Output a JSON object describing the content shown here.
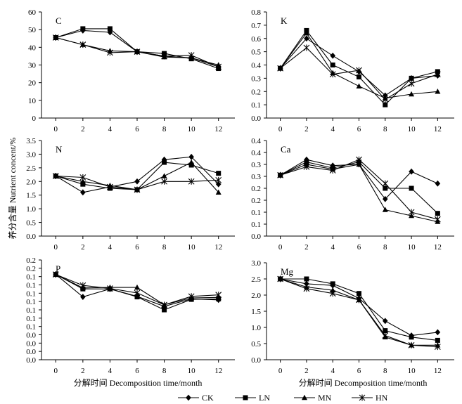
{
  "figure": {
    "y_axis_title": "养分含量 Nutrient concent/%",
    "x_axis_title_left": "分解时间 Decomposition time/month",
    "x_axis_title_right": "分解时间 Decomposition time/month",
    "legend": [
      "CK",
      "LN",
      "MN",
      "HN"
    ]
  },
  "chart_data": [
    {
      "type": "line",
      "label": "C",
      "x": [
        0,
        2,
        4,
        6,
        8,
        10,
        12
      ],
      "xticks": [
        "0",
        "2",
        "4",
        "6",
        "8",
        "10",
        "12"
      ],
      "ylim": [
        0,
        60
      ],
      "yticks": [
        "0",
        "10",
        "20",
        "30",
        "40",
        "50",
        "60"
      ],
      "series": [
        {
          "name": "CK",
          "values": [
            45.5,
            49.5,
            48.5,
            37.5,
            35,
            34,
            29
          ]
        },
        {
          "name": "LN",
          "values": [
            45.5,
            50.5,
            50.5,
            37.5,
            36.5,
            33.5,
            28
          ]
        },
        {
          "name": "MN",
          "values": [
            45.5,
            41.5,
            38,
            37.5,
            34.5,
            34,
            30
          ]
        },
        {
          "name": "HN",
          "values": [
            45.5,
            41.5,
            37,
            37.5,
            35,
            35.5,
            29
          ]
        }
      ]
    },
    {
      "type": "line",
      "label": "K",
      "x": [
        0,
        2,
        4,
        6,
        8,
        10,
        12
      ],
      "xticks": [
        "0",
        "2",
        "4",
        "6",
        "8",
        "10",
        "12"
      ],
      "ylim": [
        0,
        0.8
      ],
      "yticks": [
        "0.0",
        "0.1",
        "0.2",
        "0.3",
        "0.4",
        "0.5",
        "0.6",
        "0.7",
        "0.8"
      ],
      "series": [
        {
          "name": "CK",
          "values": [
            0.375,
            0.6,
            0.47,
            0.35,
            0.17,
            0.3,
            0.32
          ]
        },
        {
          "name": "LN",
          "values": [
            0.375,
            0.66,
            0.4,
            0.31,
            0.1,
            0.3,
            0.35
          ]
        },
        {
          "name": "MN",
          "values": [
            0.375,
            0.64,
            0.34,
            0.24,
            0.15,
            0.18,
            0.2
          ]
        },
        {
          "name": "HN",
          "values": [
            0.375,
            0.53,
            0.33,
            0.36,
            0.14,
            0.26,
            0.33
          ]
        }
      ]
    },
    {
      "type": "line",
      "label": "N",
      "x": [
        0,
        2,
        4,
        6,
        8,
        10,
        12
      ],
      "xticks": [
        "0",
        "2",
        "4",
        "6",
        "8",
        "10",
        "12"
      ],
      "ylim": [
        0,
        3.5
      ],
      "yticks": [
        "0.0",
        "0.5",
        "1.0",
        "1.5",
        "2.0",
        "2.5",
        "3.0",
        "3.5"
      ],
      "series": [
        {
          "name": "CK",
          "values": [
            2.2,
            1.6,
            1.8,
            2.0,
            2.8,
            2.9,
            1.9
          ]
        },
        {
          "name": "LN",
          "values": [
            2.2,
            1.9,
            1.75,
            1.7,
            2.7,
            2.6,
            2.3
          ]
        },
        {
          "name": "MN",
          "values": [
            2.2,
            2.0,
            1.85,
            1.7,
            2.2,
            2.7,
            1.6
          ]
        },
        {
          "name": "HN",
          "values": [
            2.2,
            2.15,
            1.8,
            1.7,
            2.0,
            2.0,
            2.05
          ]
        }
      ]
    },
    {
      "type": "line",
      "label": "Ca",
      "x": [
        0,
        2,
        4,
        6,
        8,
        10,
        12
      ],
      "xticks": [
        "0",
        "2",
        "4",
        "6",
        "8",
        "10",
        "12"
      ],
      "ylim": [
        0,
        0.4
      ],
      "yticks": [
        "0.0",
        "0.1",
        "0.1",
        "0.2",
        "0.2",
        "0.3",
        "0.3",
        "0.4",
        "0.4"
      ],
      "series": [
        {
          "name": "CK",
          "values": [
            0.255,
            0.32,
            0.295,
            0.3,
            0.155,
            0.27,
            0.22
          ]
        },
        {
          "name": "LN",
          "values": [
            0.255,
            0.31,
            0.285,
            0.31,
            0.2,
            0.2,
            0.095
          ]
        },
        {
          "name": "MN",
          "values": [
            0.255,
            0.3,
            0.28,
            0.3,
            0.11,
            0.085,
            0.06
          ]
        },
        {
          "name": "HN",
          "values": [
            0.255,
            0.29,
            0.275,
            0.32,
            0.22,
            0.1,
            0.07
          ]
        }
      ]
    },
    {
      "type": "line",
      "label": "P",
      "x": [
        0,
        2,
        4,
        6,
        8,
        10,
        12
      ],
      "xticks": [
        "0",
        "2",
        "4",
        "6",
        "8",
        "10",
        "12"
      ],
      "ylim": [
        0,
        0.2
      ],
      "yticks": [
        "0.0",
        "0.0",
        "0.0",
        "0.0",
        "0.1",
        "0.1",
        "0.1",
        "0.1",
        "0.1",
        "0.1",
        "0.1",
        "0.2",
        "0.2"
      ],
      "series": [
        {
          "name": "CK",
          "values": [
            0.171,
            0.126,
            0.142,
            0.127,
            0.107,
            0.122,
            0.12
          ]
        },
        {
          "name": "LN",
          "values": [
            0.171,
            0.142,
            0.142,
            0.126,
            0.1,
            0.121,
            0.122
          ]
        },
        {
          "name": "MN",
          "values": [
            0.171,
            0.144,
            0.145,
            0.145,
            0.11,
            0.124,
            0.125
          ]
        },
        {
          "name": "HN",
          "values": [
            0.171,
            0.149,
            0.143,
            0.134,
            0.11,
            0.127,
            0.13
          ]
        }
      ]
    },
    {
      "type": "line",
      "label": "Mg",
      "x": [
        0,
        2,
        4,
        6,
        8,
        10,
        12
      ],
      "xticks": [
        "0",
        "2",
        "4",
        "6",
        "8",
        "10",
        "12"
      ],
      "ylim": [
        0,
        3.0
      ],
      "yticks": [
        "0.0",
        "0.5",
        "1.0",
        "1.5",
        "2.0",
        "2.5",
        "3.0"
      ],
      "series": [
        {
          "name": "CK",
          "values": [
            2.5,
            2.35,
            2.3,
            1.9,
            1.2,
            0.75,
            0.85
          ]
        },
        {
          "name": "LN",
          "values": [
            2.5,
            2.5,
            2.35,
            2.05,
            0.9,
            0.7,
            0.6
          ]
        },
        {
          "name": "MN",
          "values": [
            2.5,
            2.25,
            2.15,
            1.85,
            0.7,
            0.45,
            0.45
          ]
        },
        {
          "name": "HN",
          "values": [
            2.5,
            2.2,
            2.05,
            1.85,
            0.75,
            0.45,
            0.4
          ]
        }
      ]
    }
  ]
}
